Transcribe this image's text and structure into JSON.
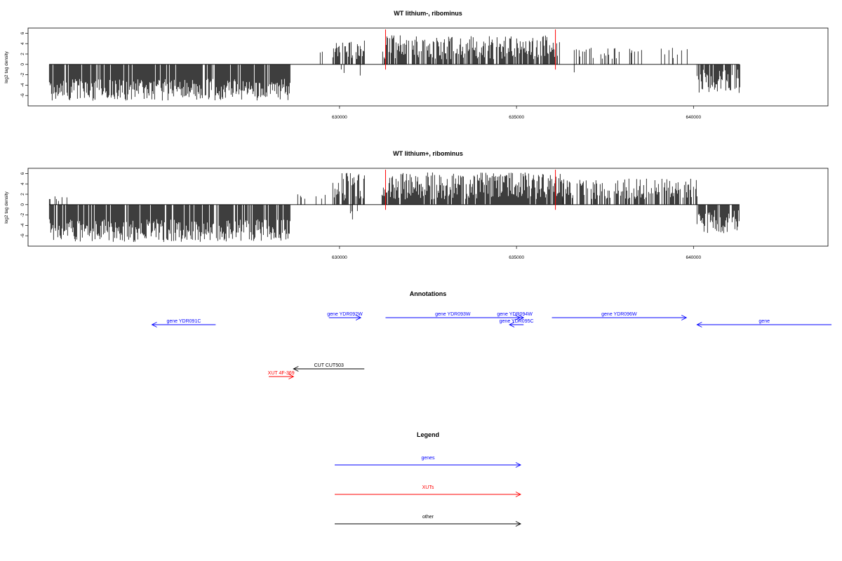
{
  "colors": {
    "genes": "#0000ff",
    "XUTs": "#ff0000",
    "other": "#000000",
    "signal": "#000000",
    "marker": "#ff0000",
    "frame": "#000000"
  },
  "chart_data": [
    {
      "type": "bar",
      "title": "WT lithium-, ribominus",
      "xlabel": "",
      "ylabel": "log2 tag density",
      "xlim": [
        621200,
        643800
      ],
      "ylim": [
        -8,
        7
      ],
      "xticks": [
        630000,
        635000,
        640000
      ],
      "yticks": [
        -6,
        -4,
        -2,
        0,
        2,
        4,
        6
      ],
      "baseline": {
        "from": 621800,
        "to": 641300
      },
      "red_markers": [
        631300,
        636100
      ],
      "segments": [
        {
          "start": 621800,
          "end": 628600,
          "sign": -1,
          "min": 2.8,
          "max": 7.0,
          "density": 0.9
        },
        {
          "start": 629400,
          "end": 629500,
          "sign": 1,
          "min": 2.0,
          "max": 2.6,
          "density": 0.2
        },
        {
          "start": 629800,
          "end": 630700,
          "sign": 1,
          "min": 0.8,
          "max": 4.6,
          "density": 0.6
        },
        {
          "start": 630050,
          "end": 630600,
          "sign": -1,
          "min": 0.4,
          "max": 2.2,
          "density": 0.15
        },
        {
          "start": 631200,
          "end": 636200,
          "sign": 1,
          "min": 1.0,
          "max": 5.6,
          "density": 0.75
        },
        {
          "start": 636600,
          "end": 639900,
          "sign": 1,
          "min": 1.0,
          "max": 3.2,
          "density": 0.25
        },
        {
          "start": 636620,
          "end": 636660,
          "sign": -1,
          "min": 1.5,
          "max": 2.0,
          "density": 0.3
        },
        {
          "start": 640100,
          "end": 641300,
          "sign": -1,
          "min": 1.0,
          "max": 5.5,
          "density": 0.85
        }
      ]
    },
    {
      "type": "bar",
      "title": "WT lithium+, ribominus",
      "xlabel": "",
      "ylabel": "log2 tag density",
      "xlim": [
        621200,
        643800
      ],
      "ylim": [
        -8,
        7
      ],
      "xticks": [
        630000,
        635000,
        640000
      ],
      "yticks": [
        -6,
        -4,
        -2,
        0,
        2,
        4,
        6
      ],
      "baseline": {
        "from": 621800,
        "to": 641300
      },
      "red_markers": [
        631300,
        636100
      ],
      "segments": [
        {
          "start": 621800,
          "end": 622300,
          "sign": 1,
          "min": 0.5,
          "max": 2.0,
          "density": 0.3
        },
        {
          "start": 621800,
          "end": 628600,
          "sign": -1,
          "min": 2.8,
          "max": 7.2,
          "density": 0.9
        },
        {
          "start": 628800,
          "end": 629600,
          "sign": 1,
          "min": 0.5,
          "max": 2.0,
          "density": 0.15
        },
        {
          "start": 629800,
          "end": 630700,
          "sign": 1,
          "min": 0.8,
          "max": 6.2,
          "density": 0.75
        },
        {
          "start": 630000,
          "end": 630700,
          "sign": -1,
          "min": 0.5,
          "max": 3.0,
          "density": 0.2
        },
        {
          "start": 631200,
          "end": 636300,
          "sign": 1,
          "min": 1.0,
          "max": 6.2,
          "density": 0.9
        },
        {
          "start": 635800,
          "end": 635850,
          "sign": -1,
          "min": 1.5,
          "max": 2.0,
          "density": 0.3
        },
        {
          "start": 636300,
          "end": 640100,
          "sign": 1,
          "min": 1.0,
          "max": 5.0,
          "density": 0.6
        },
        {
          "start": 640100,
          "end": 641300,
          "sign": -1,
          "min": 1.0,
          "max": 5.5,
          "density": 0.85
        }
      ]
    }
  ],
  "annotations": {
    "title": "Annotations",
    "features": [
      {
        "label": "gene YDR091C",
        "start": 624700,
        "end": 626500,
        "strand": "-",
        "kind": "genes",
        "row": 2
      },
      {
        "label": "gene YDR092W",
        "start": 629700,
        "end": 630600,
        "strand": "+",
        "kind": "genes",
        "row": 1
      },
      {
        "label": "gene YDR093W",
        "start": 631300,
        "end": 635100,
        "strand": "+",
        "kind": "genes",
        "row": 1
      },
      {
        "label": "gene YDR094W",
        "start": 634700,
        "end": 635200,
        "strand": "+",
        "kind": "genes",
        "row": 1
      },
      {
        "label": "gene YDR095C",
        "start": 634800,
        "end": 635200,
        "strand": "-",
        "kind": "genes",
        "row": 2
      },
      {
        "label": "gene YDR096W",
        "start": 636000,
        "end": 639800,
        "strand": "+",
        "kind": "genes",
        "row": 1
      },
      {
        "label": "gene",
        "start": 640100,
        "end": 643900,
        "strand": "-",
        "kind": "genes",
        "row": 2
      },
      {
        "label": "CUT CUT503",
        "start": 628700,
        "end": 630700,
        "strand": "-",
        "kind": "other",
        "row": 3
      },
      {
        "label": "XUT 4F-369",
        "start": 628000,
        "end": 628700,
        "strand": "+",
        "kind": "XUTs",
        "row": 4
      }
    ]
  },
  "legend": {
    "title": "Legend",
    "items": [
      {
        "label": "genes",
        "kind": "genes"
      },
      {
        "label": "XUTs",
        "kind": "XUTs"
      },
      {
        "label": "other",
        "kind": "other"
      }
    ]
  }
}
